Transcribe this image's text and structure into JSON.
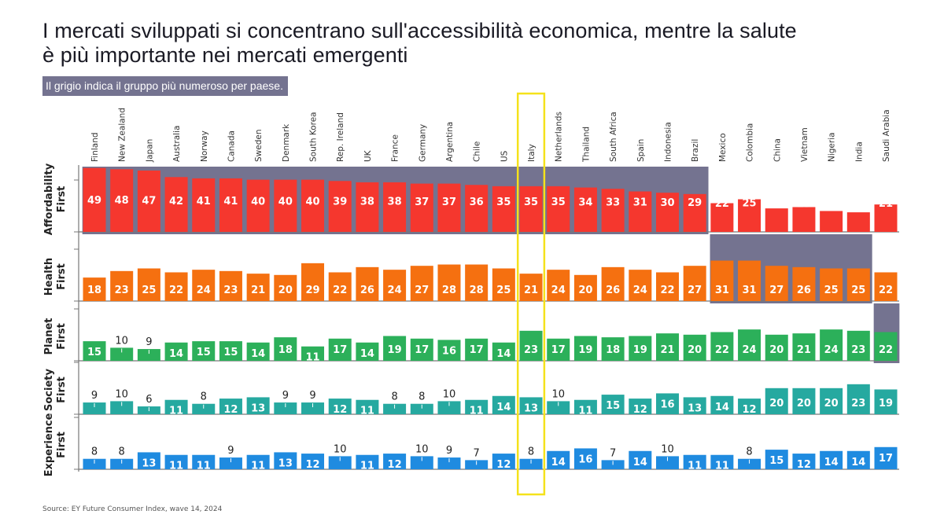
{
  "title_line1": "I mercati sviluppati si concentrano sull'accessibilità economica, mentre la salute",
  "title_line2": "è più importante nei mercati emergenti",
  "subtitle": "Il grigio indica il gruppo più numeroso per paese.",
  "source": "Source: EY Future Consumer Index, wave 14, 2024",
  "highlight_country": "Italy",
  "colors": {
    "affordability": "#f5372e",
    "health": "#f57010",
    "planet": "#2cb05a",
    "society": "#26a9a0",
    "experience": "#1f8be0",
    "gray_group": "#747390",
    "highlight": "#f5e21b"
  },
  "chart_data": {
    "type": "bar",
    "title": "I mercati sviluppati si concentrano sull'accessibilità economica, mentre la salute è più importante nei mercati emergenti",
    "categories": [
      "Finland",
      "New Zealand",
      "Japan",
      "Australia",
      "Norway",
      "Canada",
      "Sweden",
      "Denmark",
      "South Korea",
      "Rep. Ireland",
      "UK",
      "France",
      "Germany",
      "Argentina",
      "Chile",
      "US",
      "Italy",
      "Netherlands",
      "Thailand",
      "South Africa",
      "Spain",
      "Indonesia",
      "Brazil",
      "Mexico",
      "Colombia",
      "China",
      "Vietnam",
      "Nigeria",
      "India",
      "Saudi Arabia"
    ],
    "series": [
      {
        "name": "Affordability First",
        "label_lines": [
          "Affordability",
          "First"
        ],
        "color_key": "affordability",
        "values": [
          49,
          48,
          47,
          42,
          41,
          41,
          40,
          40,
          40,
          39,
          38,
          38,
          37,
          37,
          36,
          35,
          35,
          35,
          34,
          33,
          31,
          30,
          29,
          22,
          25,
          18,
          19,
          16,
          15,
          21
        ],
        "gray_group": [
          "Finland",
          "New Zealand",
          "Japan",
          "Australia",
          "Norway",
          "Canada",
          "Sweden",
          "Denmark",
          "South Korea",
          "Rep. Ireland",
          "UK",
          "France",
          "Germany",
          "Argentina",
          "Chile",
          "US",
          "Italy",
          "Netherlands",
          "Thailand",
          "South Africa",
          "Spain",
          "Indonesia",
          "Brazil"
        ]
      },
      {
        "name": "Health First",
        "label_lines": [
          "Health",
          "First"
        ],
        "color_key": "health",
        "values": [
          18,
          23,
          25,
          22,
          24,
          23,
          21,
          20,
          29,
          22,
          26,
          24,
          27,
          28,
          28,
          25,
          21,
          24,
          20,
          26,
          24,
          22,
          27,
          31,
          31,
          27,
          26,
          25,
          25,
          22
        ],
        "gray_group": [
          "Mexico",
          "Colombia",
          "China",
          "Vietnam",
          "Nigeria",
          "India"
        ]
      },
      {
        "name": "Planet First",
        "label_lines": [
          "Planet",
          "First"
        ],
        "color_key": "planet",
        "values": [
          15,
          10,
          9,
          14,
          15,
          15,
          14,
          18,
          11,
          17,
          14,
          19,
          17,
          16,
          17,
          14,
          23,
          17,
          19,
          18,
          19,
          21,
          20,
          22,
          24,
          20,
          21,
          24,
          23,
          22
        ],
        "gray_group": [
          "Saudi Arabia"
        ]
      },
      {
        "name": "Society First",
        "label_lines": [
          "Society",
          "First"
        ],
        "color_key": "society",
        "values": [
          9,
          10,
          6,
          11,
          8,
          12,
          13,
          9,
          9,
          12,
          11,
          8,
          8,
          10,
          11,
          14,
          13,
          10,
          11,
          15,
          12,
          16,
          13,
          14,
          12,
          20,
          20,
          20,
          23,
          19
        ],
        "gray_group": []
      },
      {
        "name": "Experience First",
        "label_lines": [
          "Experience",
          "First"
        ],
        "color_key": "experience",
        "values": [
          8,
          8,
          13,
          11,
          11,
          9,
          11,
          13,
          12,
          10,
          11,
          12,
          10,
          9,
          7,
          12,
          8,
          14,
          16,
          7,
          14,
          10,
          11,
          11,
          8,
          15,
          12,
          14,
          14,
          17
        ],
        "gray_group": []
      }
    ],
    "xlabel": "",
    "ylabel": "",
    "grid": false,
    "legend": "none"
  }
}
